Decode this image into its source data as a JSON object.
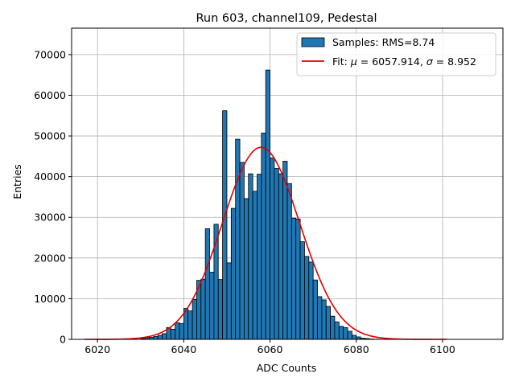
{
  "chart_data": {
    "type": "bar",
    "title": "Run 603, channel109, Pedestal",
    "xlabel": "ADC Counts",
    "ylabel": "Entries",
    "xlim": [
      6014,
      6114
    ],
    "ylim": [
      0,
      76500
    ],
    "xticks": [
      6020,
      6040,
      6060,
      6080,
      6100
    ],
    "yticks": [
      0,
      10000,
      20000,
      30000,
      40000,
      50000,
      60000,
      70000
    ],
    "grid": true,
    "legend_position": "top-right",
    "bin_width": 1,
    "histogram": {
      "name": "Samples: RMS=8.74",
      "color": "#1f77b4",
      "bin_starts": [
        6030,
        6031,
        6032,
        6033,
        6034,
        6035,
        6036,
        6037,
        6038,
        6039,
        6040,
        6041,
        6042,
        6043,
        6044,
        6045,
        6046,
        6047,
        6048,
        6049,
        6050,
        6051,
        6052,
        6053,
        6054,
        6055,
        6056,
        6057,
        6058,
        6059,
        6060,
        6061,
        6062,
        6063,
        6064,
        6065,
        6066,
        6067,
        6068,
        6069,
        6070,
        6071,
        6072,
        6073,
        6074,
        6075,
        6076,
        6077,
        6078,
        6079,
        6080,
        6081,
        6082,
        6083,
        6084,
        6085,
        6086,
        6087
      ],
      "values": [
        200,
        400,
        500,
        700,
        1000,
        1400,
        2900,
        2500,
        4100,
        3900,
        7600,
        7000,
        9800,
        14500,
        14800,
        27200,
        16500,
        28300,
        14700,
        56200,
        18800,
        32200,
        49200,
        43500,
        34600,
        40700,
        36400,
        40600,
        50700,
        66200,
        44600,
        42000,
        40700,
        43800,
        38300,
        29800,
        29600,
        24000,
        20400,
        19000,
        14600,
        10500,
        9700,
        8100,
        5700,
        4300,
        3200,
        2900,
        2000,
        1000,
        600,
        300,
        200,
        100,
        50,
        30,
        20,
        10
      ]
    },
    "fit": {
      "name": "Fit: μ = 6057.914, σ = 8.952",
      "label_prefix": "Fit: ",
      "label_mu": "μ",
      "label_mid": " = 6057.914, ",
      "label_sigma": "σ",
      "label_end": " = 8.952",
      "color": "#e00000",
      "mu": 6057.914,
      "sigma": 8.952,
      "amplitude": 47200,
      "x_range": [
        6017,
        6101
      ]
    }
  }
}
